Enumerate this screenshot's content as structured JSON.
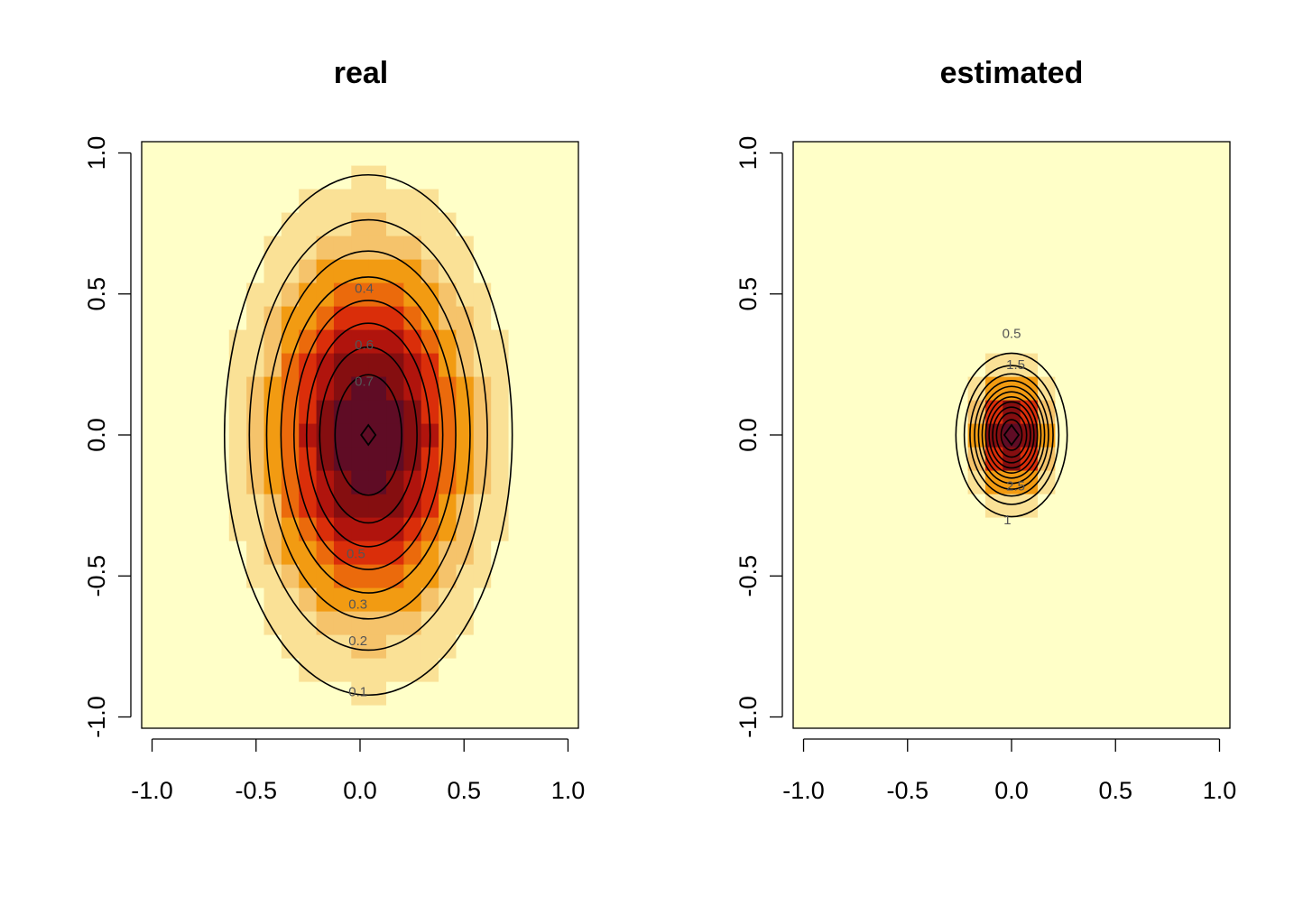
{
  "chart_data": [
    {
      "type": "heatmap",
      "title": "real",
      "xlabel": "",
      "ylabel": "",
      "xlim": [
        -1.05,
        1.05
      ],
      "ylim": [
        -1.04,
        1.04
      ],
      "x_ticks": [
        "-1.0",
        "-0.5",
        "0.0",
        "0.5",
        "1.0"
      ],
      "y_ticks": [
        "-1.0",
        "-0.5",
        "0.0",
        "0.5",
        "1.0"
      ],
      "grid": false,
      "legend": "none",
      "palette": [
        "#FFFFC8",
        "#FAE196",
        "#F5C36B",
        "#F29B12",
        "#EB6A0C",
        "#DA2E0A",
        "#B0140D",
        "#850E10",
        "#5F0C25"
      ],
      "density": {
        "center": [
          0.04,
          0.0
        ],
        "sigma": [
          0.33,
          0.44
        ],
        "peak": 0.9
      },
      "contour_levels": [
        0.1,
        0.2,
        0.3,
        0.4,
        0.5,
        0.6,
        0.7,
        0.8,
        0.9
      ],
      "contour_labels": [
        {
          "text": "0.1",
          "x": -0.01,
          "y": -0.91
        },
        {
          "text": "0.2",
          "x": -0.01,
          "y": -0.73
        },
        {
          "text": "0.3",
          "x": -0.01,
          "y": -0.6
        },
        {
          "text": "0.4",
          "x": 0.02,
          "y": 0.52
        },
        {
          "text": "0.5",
          "x": -0.02,
          "y": -0.42
        },
        {
          "text": "0.6",
          "x": 0.02,
          "y": 0.32
        },
        {
          "text": "0.7",
          "x": 0.02,
          "y": 0.19
        }
      ]
    },
    {
      "type": "heatmap",
      "title": "estimated",
      "xlabel": "",
      "ylabel": "",
      "xlim": [
        -1.05,
        1.05
      ],
      "ylim": [
        -1.04,
        1.04
      ],
      "x_ticks": [
        "-1.0",
        "-0.5",
        "0.0",
        "0.5",
        "1.0"
      ],
      "y_ticks": [
        "-1.0",
        "-0.5",
        "0.0",
        "0.5",
        "1.0"
      ],
      "grid": false,
      "legend": "none",
      "palette": [
        "#FFFFC8",
        "#FAE196",
        "#F5C36B",
        "#F29B12",
        "#EB6A0C",
        "#DA2E0A",
        "#B0140D",
        "#850E10",
        "#5F0C25"
      ],
      "density": {
        "center": [
          0.0,
          0.0
        ],
        "sigma": [
          0.12,
          0.13
        ],
        "peak": 6.0
      },
      "contour_levels": [
        0.5,
        1,
        1.5,
        2,
        2.5,
        3,
        3.5,
        4,
        4.5,
        5,
        5.5
      ],
      "contour_labels": [
        {
          "text": "0.5",
          "x": 0.0,
          "y": 0.36
        },
        {
          "text": "1.5",
          "x": 0.02,
          "y": 0.25
        },
        {
          "text": "1",
          "x": -0.02,
          "y": -0.3
        },
        {
          "text": "2.5",
          "x": 0.02,
          "y": -0.18
        }
      ]
    }
  ]
}
